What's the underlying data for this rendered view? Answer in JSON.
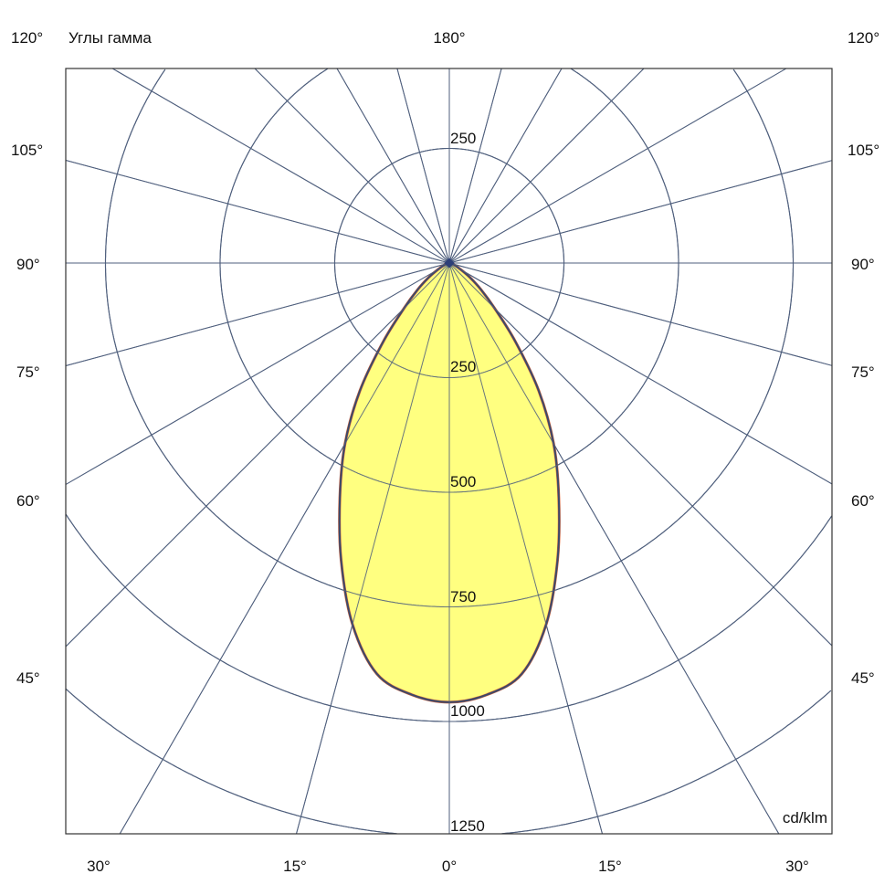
{
  "chart_data": {
    "type": "polar",
    "title": "Углы гамма",
    "unit_label": "cd/klm",
    "radial_max": 1500,
    "radial_ticks": [
      250,
      500,
      750,
      1000,
      1250
    ],
    "ring_labels_bottom": [
      "250",
      "500",
      "750",
      "1000",
      "1250"
    ],
    "ring_label_top": "250",
    "angle_step_deg": 15,
    "left_angle_labels": [
      "120°",
      "105°",
      "90°",
      "75°",
      "60°",
      "45°"
    ],
    "right_angle_labels": [
      "120°",
      "105°",
      "90°",
      "75°",
      "60°",
      "45°"
    ],
    "top_label": "180°",
    "bottom_angle_labels": [
      "30°",
      "15°",
      "0°",
      "15°",
      "30°"
    ],
    "grid": true,
    "series": [
      {
        "angles_deg": [
          0,
          5,
          10,
          15,
          20,
          25,
          30,
          35,
          40,
          45,
          50,
          55,
          60,
          70,
          80,
          90
        ],
        "values": [
          958,
          945,
          910,
          816,
          690,
          565,
          455,
          340,
          225,
          140,
          90,
          55,
          30,
          10,
          3,
          0
        ],
        "symmetric": true
      }
    ],
    "colors": {
      "grid": "#4f5f7d",
      "fill": "#ffff80",
      "outline": "#3b4a6b",
      "outline_accent": "#d0603a",
      "frame": "#333333"
    }
  }
}
